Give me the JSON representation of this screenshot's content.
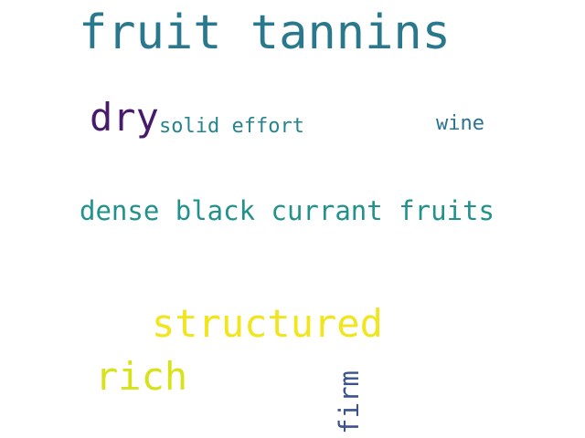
{
  "words": [
    {
      "text": "fruit tannins",
      "color": "#2a788e"
    },
    {
      "text": "dry",
      "color": "#481a6c"
    },
    {
      "text": "solid effort",
      "color": "#25858e"
    },
    {
      "text": "wine",
      "color": "#2c728e"
    },
    {
      "text": "dense black currant fruits",
      "color": "#21918c"
    },
    {
      "text": "structured",
      "color": "#f1e51d"
    },
    {
      "text": "rich",
      "color": "#d8e219"
    },
    {
      "text": "firm",
      "color": "#3b528b"
    }
  ]
}
